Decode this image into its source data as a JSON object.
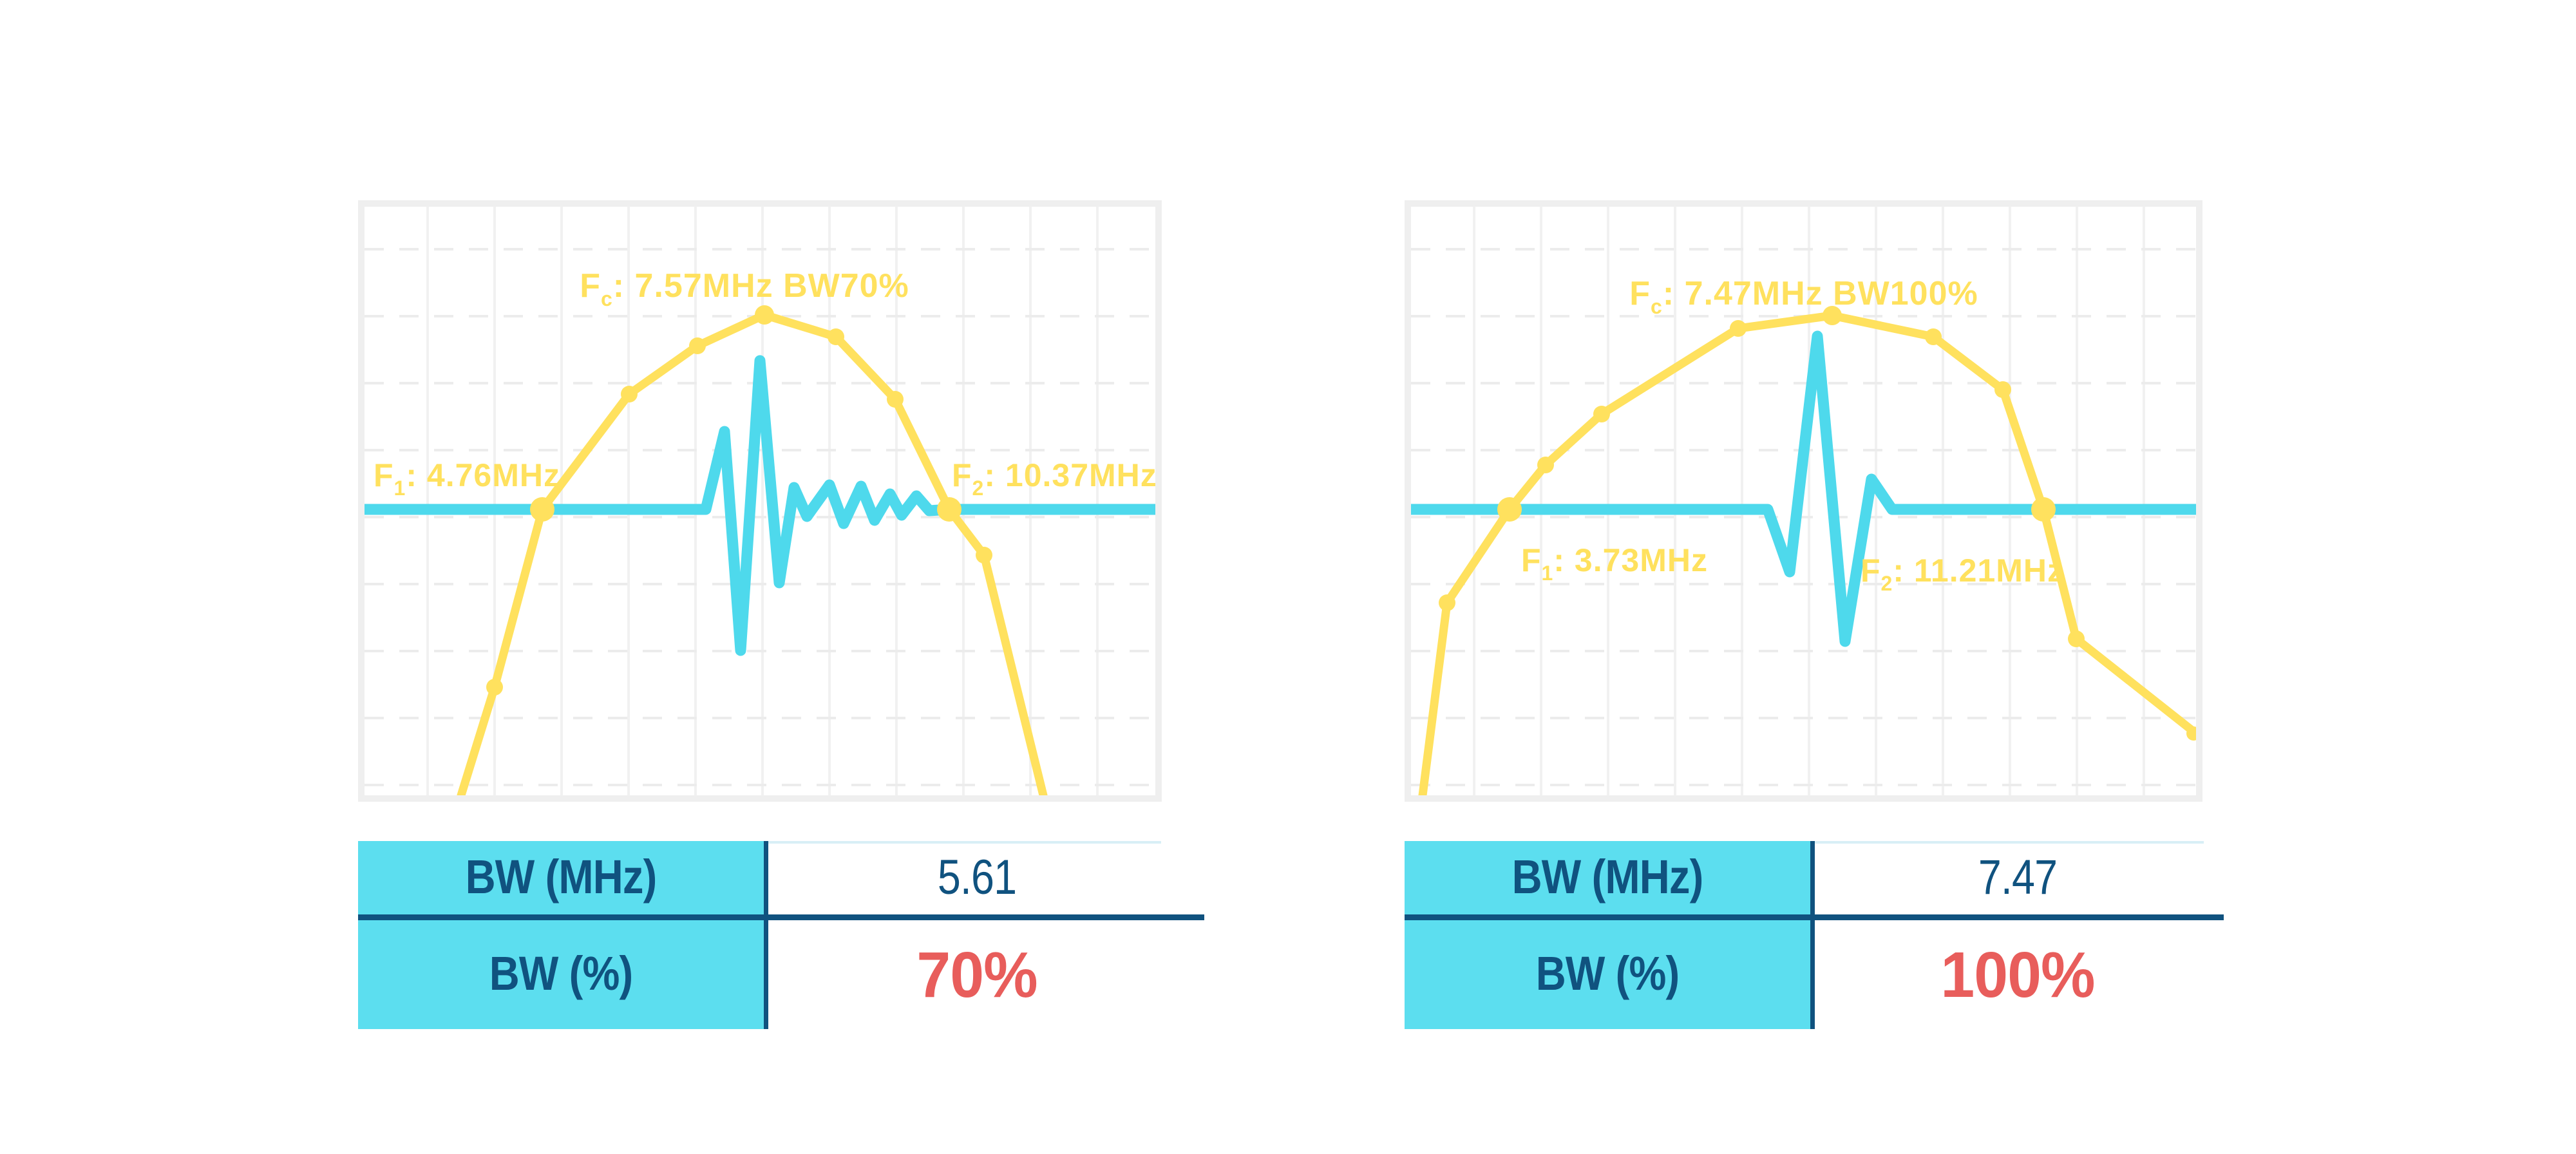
{
  "colors": {
    "yellow": "#FFE15E",
    "cyan": "#4ED9EC",
    "cyan_fill": "#5CDEEF",
    "navy": "#10527F",
    "red": "#E85D5B",
    "frame": "#EFEFEF",
    "grid_dashed": "#ECECEC",
    "grid_solid": "#F1F1F1",
    "pale_line": "#D8EFF6"
  },
  "chart_data": [
    {
      "type": "line",
      "title": "Transducer spectrum and pulse, 70% bandwidth",
      "annotations": [
        "Fc: 7.57MHz BW70%",
        "F1: 4.76MHz",
        "F2: 10.37MHz"
      ],
      "center_frequency_mhz": 7.57,
      "f1_mhz": 4.76,
      "f2_mhz": 10.37,
      "bandwidth_mhz": 5.61,
      "bandwidth_percent": 70,
      "series": [
        {
          "name": "frequency spectrum",
          "color": "#FFE15E",
          "style": "line-with-markers"
        },
        {
          "name": "pulse waveform",
          "color": "#4ED9EC",
          "style": "line"
        },
        {
          "name": "bandwidth reference line",
          "color": "#4ED9EC",
          "style": "horizontal-line"
        }
      ],
      "grid": "dashed light gray, no tick labels, no axis labels"
    },
    {
      "type": "line",
      "title": "Transducer spectrum and pulse, 100% bandwidth",
      "annotations": [
        "Fc: 7.47MHz BW100%",
        "F1: 3.73MHz",
        "F2: 11.21MHz"
      ],
      "center_frequency_mhz": 7.47,
      "f1_mhz": 3.73,
      "f2_mhz": 11.21,
      "bandwidth_mhz": 7.47,
      "bandwidth_percent": 100,
      "series": [
        {
          "name": "frequency spectrum",
          "color": "#FFE15E",
          "style": "line-with-markers"
        },
        {
          "name": "pulse waveform",
          "color": "#4ED9EC",
          "style": "line"
        },
        {
          "name": "bandwidth reference line",
          "color": "#4ED9EC",
          "style": "horizontal-line"
        }
      ],
      "grid": "dashed light gray, no tick labels, no axis labels"
    }
  ],
  "charts": [
    {
      "labels": {
        "fc_f": "F",
        "fc_sub": "c",
        "fc_rest": ": 7.57MHz BW70%",
        "f1_f": "F",
        "f1_sub": "1",
        "f1_rest": ": 4.76MHz",
        "f2_f": "F",
        "f2_sub": "2",
        "f2_rest": ": 10.37MHz"
      },
      "spectrum": [
        [
          150,
          914
        ],
        [
          202,
          746
        ],
        [
          276,
          470
        ],
        [
          411,
          291
        ],
        [
          517,
          216
        ],
        [
          621,
          168
        ],
        [
          732,
          202
        ],
        [
          824,
          299
        ],
        [
          908,
          470
        ],
        [
          962,
          541
        ],
        [
          1054,
          914
        ]
      ],
      "dots": [
        [
          202,
          746,
          13
        ],
        [
          276,
          470,
          19
        ],
        [
          411,
          291,
          13
        ],
        [
          517,
          216,
          13
        ],
        [
          621,
          168,
          15
        ],
        [
          732,
          202,
          13
        ],
        [
          824,
          299,
          13
        ],
        [
          908,
          470,
          19
        ],
        [
          962,
          541,
          13
        ]
      ],
      "pulse": [
        [
          0,
          470
        ],
        [
          530,
          470
        ],
        [
          559,
          349
        ],
        [
          584,
          689
        ],
        [
          614,
          239
        ],
        [
          644,
          584
        ],
        [
          667,
          436
        ],
        [
          687,
          481
        ],
        [
          722,
          432
        ],
        [
          744,
          492
        ],
        [
          771,
          434
        ],
        [
          792,
          487
        ],
        [
          816,
          446
        ],
        [
          834,
          479
        ],
        [
          857,
          449
        ],
        [
          877,
          472
        ],
        [
          908,
          470
        ],
        [
          1228,
          470
        ]
      ]
    },
    {
      "labels": {
        "fc_f": "F",
        "fc_sub": "c",
        "fc_rest": ": 7.47MHz BW100%",
        "f1_f": "F",
        "f1_sub": "1",
        "f1_rest": ": 3.73MHz",
        "f2_f": "F",
        "f2_sub": "2",
        "f2_rest": ": 11.21MHz"
      },
      "spectrum": [
        [
          18,
          914
        ],
        [
          56,
          615
        ],
        [
          153,
          470
        ],
        [
          209,
          401
        ],
        [
          296,
          322
        ],
        [
          508,
          189
        ],
        [
          654,
          169
        ],
        [
          811,
          202
        ],
        [
          919,
          284
        ],
        [
          982,
          470
        ],
        [
          1033,
          671
        ],
        [
          1219,
          818
        ]
      ],
      "dots": [
        [
          56,
          615,
          13
        ],
        [
          153,
          470,
          19
        ],
        [
          209,
          401,
          13
        ],
        [
          296,
          322,
          13
        ],
        [
          508,
          189,
          13
        ],
        [
          654,
          169,
          15
        ],
        [
          811,
          202,
          13
        ],
        [
          919,
          284,
          13
        ],
        [
          982,
          470,
          19
        ],
        [
          1033,
          671,
          13
        ],
        [
          1215,
          818,
          11
        ]
      ],
      "pulse": [
        [
          0,
          470
        ],
        [
          554,
          470
        ],
        [
          588,
          567
        ],
        [
          631,
          201
        ],
        [
          674,
          675
        ],
        [
          715,
          423
        ],
        [
          747,
          470
        ],
        [
          1219,
          470
        ]
      ]
    }
  ],
  "tables": [
    {
      "rows": [
        {
          "label": "BW (MHz)",
          "value": "5.61"
        },
        {
          "label": "BW (%)",
          "value": "70%"
        }
      ]
    },
    {
      "rows": [
        {
          "label": "BW (MHz)",
          "value": "7.47"
        },
        {
          "label": "BW (%)",
          "value": "100%"
        }
      ]
    }
  ]
}
